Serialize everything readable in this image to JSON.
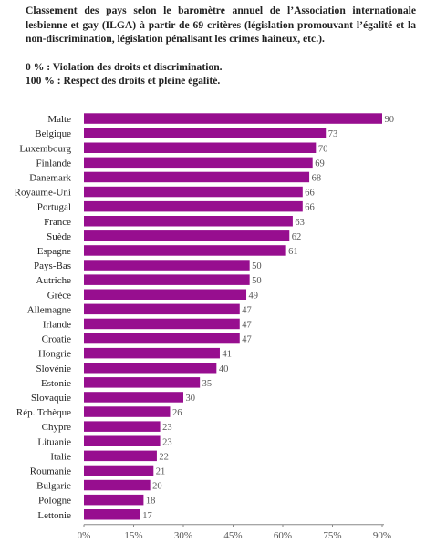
{
  "caption": {
    "description": "Classement des pays selon le baromètre annuel de l’Association internationale lesbienne et gay (ILGA) à partir de 69 critères (législation promouvant l’égalité et la non-discrimination, législation pénalisant les crimes haineux, etc.).",
    "scale_low": "0 % : Violation des droits et discrimination.",
    "scale_high": "100 % : Respect des droits et pleine égalité."
  },
  "chart_data": {
    "type": "bar",
    "orientation": "horizontal",
    "categories": [
      "Malte",
      "Belgique",
      "Luxembourg",
      "Finlande",
      "Danemark",
      "Royaume-Uni",
      "Portugal",
      "France",
      "Suède",
      "Espagne",
      "Pays-Bas",
      "Autriche",
      "Grèce",
      "Allemagne",
      "Irlande",
      "Croatie",
      "Hongrie",
      "Slovénie",
      "Estonie",
      "Slovaquie",
      "Rép. Tchèque",
      "Chypre",
      "Lituanie",
      "Italie",
      "Roumanie",
      "Bulgarie",
      "Pologne",
      "Lettonie"
    ],
    "values": [
      90,
      73,
      70,
      69,
      68,
      66,
      66,
      63,
      62,
      61,
      50,
      50,
      49,
      47,
      47,
      47,
      41,
      40,
      35,
      30,
      26,
      23,
      23,
      22,
      21,
      20,
      18,
      17
    ],
    "xlim": [
      0,
      90
    ],
    "xticks": [
      0,
      15,
      30,
      45,
      60,
      75,
      90
    ],
    "xtick_labels": [
      "0%",
      "15%",
      "30%",
      "45%",
      "60%",
      "75%",
      "90%"
    ],
    "bar_color": "#970e8f",
    "title": "",
    "xlabel": "",
    "ylabel": "",
    "grid": false,
    "legend": "none"
  }
}
